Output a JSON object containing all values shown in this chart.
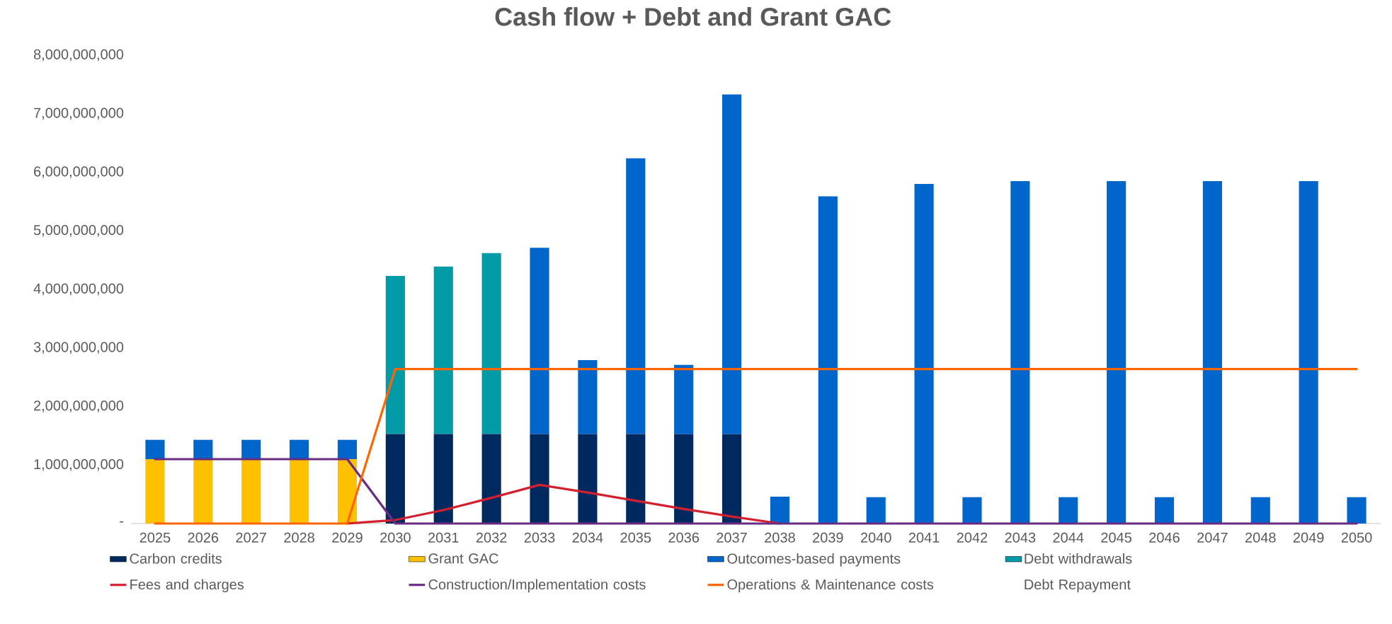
{
  "chart_data": {
    "type": "bar",
    "title": "Cash flow + Debt and Grant GAC",
    "stacked": true,
    "legend": "bottom",
    "grid": false,
    "categories": [
      "2025",
      "2026",
      "2027",
      "2028",
      "2029",
      "2030",
      "2031",
      "2032",
      "2033",
      "2034",
      "2035",
      "2036",
      "2037",
      "2038",
      "2039",
      "2040",
      "2041",
      "2042",
      "2043",
      "2044",
      "2045",
      "2046",
      "2047",
      "2048",
      "2049",
      "2050"
    ],
    "ylim": [
      0,
      8000000000
    ],
    "yticks": [
      {
        "value": 0,
        "label": "-"
      },
      {
        "value": 1000000000,
        "label": "1,000,000,000"
      },
      {
        "value": 2000000000,
        "label": "2,000,000,000"
      },
      {
        "value": 3000000000,
        "label": "3,000,000,000"
      },
      {
        "value": 4000000000,
        "label": "4,000,000,000"
      },
      {
        "value": 5000000000,
        "label": "5,000,000,000"
      },
      {
        "value": 6000000000,
        "label": "6,000,000,000"
      },
      {
        "value": 7000000000,
        "label": "7,000,000,000"
      },
      {
        "value": 8000000000,
        "label": "8,000,000,000"
      }
    ],
    "series": [
      {
        "name": "Carbon credits",
        "type": "bar",
        "color": "#002960",
        "values": [
          0,
          0,
          0,
          0,
          0,
          1530000000,
          1530000000,
          1530000000,
          1530000000,
          1530000000,
          1530000000,
          1530000000,
          1530000000,
          0,
          0,
          0,
          0,
          0,
          0,
          0,
          0,
          0,
          0,
          0,
          0,
          0
        ]
      },
      {
        "name": "Grant GAC",
        "type": "bar",
        "color": "#ffc000",
        "values": [
          1100000000,
          1100000000,
          1100000000,
          1100000000,
          1100000000,
          0,
          0,
          0,
          0,
          0,
          0,
          0,
          0,
          0,
          0,
          0,
          0,
          0,
          0,
          0,
          0,
          0,
          0,
          0,
          0,
          0
        ]
      },
      {
        "name": "Outcomes-based payments",
        "type": "bar",
        "color": "#0066cc",
        "values": [
          330000000,
          330000000,
          330000000,
          330000000,
          330000000,
          0,
          0,
          0,
          3180000000,
          1260000000,
          4710000000,
          1180000000,
          5800000000,
          460000000,
          5590000000,
          450000000,
          5800000000,
          450000000,
          5850000000,
          450000000,
          5850000000,
          450000000,
          5850000000,
          450000000,
          5850000000,
          450000000
        ]
      },
      {
        "name": "Debt withdrawals",
        "type": "bar",
        "color": "#009ba6",
        "values": [
          0,
          0,
          0,
          0,
          0,
          2700000000,
          2860000000,
          3090000000,
          0,
          0,
          0,
          0,
          0,
          0,
          0,
          0,
          0,
          0,
          0,
          0,
          0,
          0,
          0,
          0,
          0,
          0
        ]
      },
      {
        "name": "Fees and charges",
        "type": "line",
        "color": "#d4202e",
        "values": [
          null,
          null,
          null,
          null,
          0,
          60000000,
          230000000,
          440000000,
          660000000,
          530000000,
          390000000,
          250000000,
          120000000,
          0,
          null,
          null,
          null,
          null,
          null,
          null,
          null,
          null,
          null,
          null,
          null,
          null
        ]
      },
      {
        "name": "Construction/Implementation costs",
        "type": "line",
        "color": "#6a2c82",
        "values": [
          1100000000,
          1100000000,
          1100000000,
          1100000000,
          1100000000,
          0,
          0,
          0,
          0,
          0,
          0,
          0,
          0,
          0,
          0,
          0,
          0,
          0,
          0,
          0,
          0,
          0,
          0,
          0,
          0,
          0
        ]
      },
      {
        "name": "Operations & Maintenance costs",
        "type": "line",
        "color": "#ff6600",
        "values": [
          0,
          0,
          0,
          0,
          0,
          2640000000,
          2640000000,
          2640000000,
          2640000000,
          2640000000,
          2640000000,
          2640000000,
          2640000000,
          2640000000,
          2640000000,
          2640000000,
          2640000000,
          2640000000,
          2640000000,
          2640000000,
          2640000000,
          2640000000,
          2640000000,
          2640000000,
          2640000000,
          2640000000
        ]
      },
      {
        "name": "Debt Repayment",
        "type": "line",
        "values": [
          null,
          null,
          null,
          null,
          null,
          null,
          null,
          null,
          null,
          null,
          null,
          null,
          null,
          null,
          null,
          null,
          null,
          null,
          null,
          null,
          null,
          null,
          null,
          null,
          null,
          null
        ]
      }
    ]
  }
}
